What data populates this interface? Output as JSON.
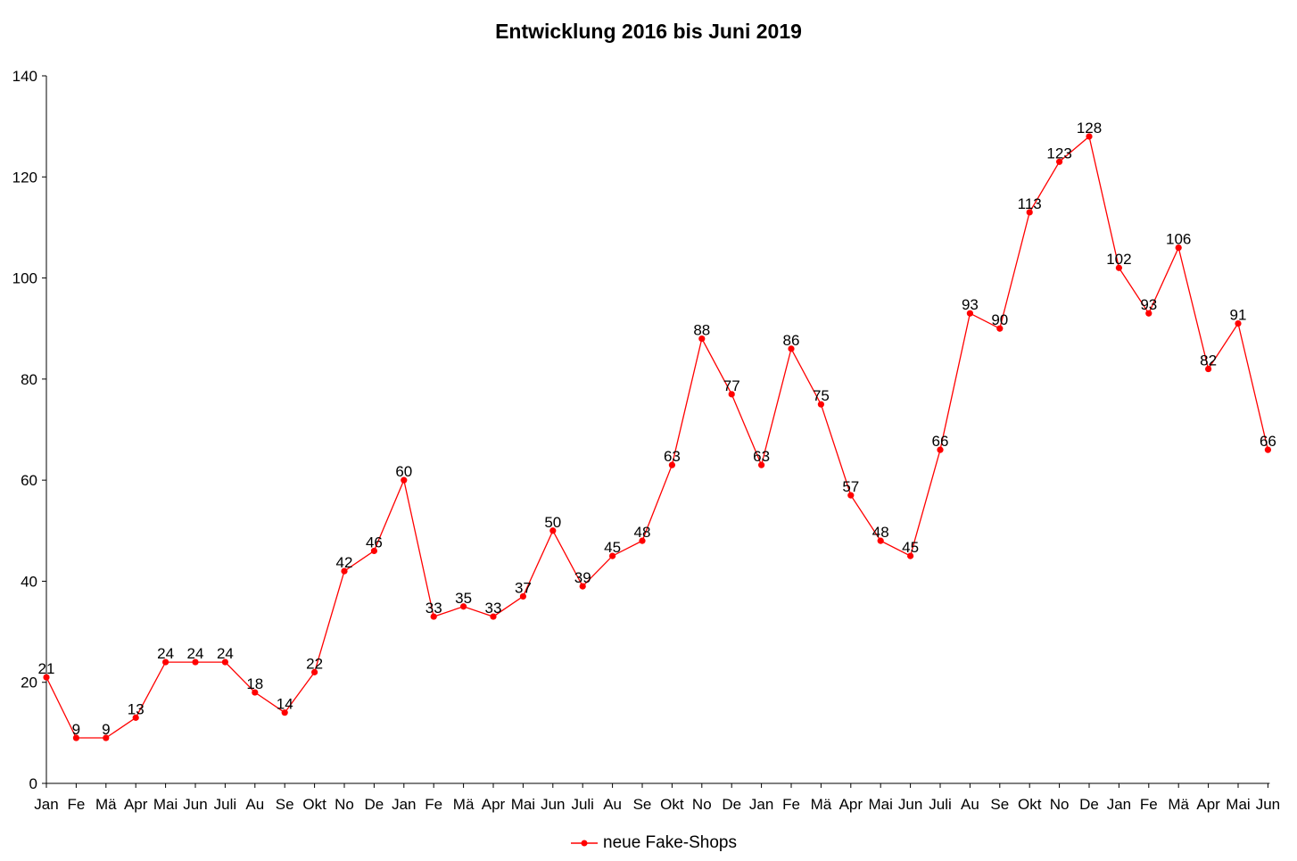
{
  "chart_data": {
    "type": "line",
    "title": "Entwicklung 2016 bis Juni 2019",
    "xlabel": "",
    "ylabel": "",
    "categories": [
      "Jan",
      "Fe",
      "Mä",
      "Apr",
      "Mai",
      "Jun",
      "Juli",
      "Au",
      "Se",
      "Okt",
      "No",
      "De",
      "Jan",
      "Fe",
      "Mä",
      "Apr",
      "Mai",
      "Jun",
      "Juli",
      "Au",
      "Se",
      "Okt",
      "No",
      "De",
      "Jan",
      "Fe",
      "Mä",
      "Apr",
      "Mai",
      "Jun",
      "Juli",
      "Au",
      "Se",
      "Okt",
      "No",
      "De",
      "Jan",
      "Fe",
      "Mä",
      "Apr",
      "Mai",
      "Jun"
    ],
    "series": [
      {
        "name": "neue Fake-Shops",
        "color": "#ff0000",
        "values": [
          21,
          9,
          9,
          13,
          24,
          24,
          24,
          18,
          14,
          22,
          42,
          46,
          60,
          33,
          35,
          33,
          37,
          50,
          39,
          45,
          48,
          63,
          88,
          77,
          63,
          86,
          75,
          57,
          48,
          45,
          66,
          93,
          90,
          113,
          123,
          128,
          102,
          93,
          106,
          82,
          91,
          66
        ]
      }
    ],
    "ylim": [
      0,
      140
    ],
    "yticks": [
      0,
      20,
      40,
      60,
      80,
      100,
      120,
      140
    ],
    "grid": false,
    "legend_position": "bottom-center",
    "data_labels": true
  }
}
